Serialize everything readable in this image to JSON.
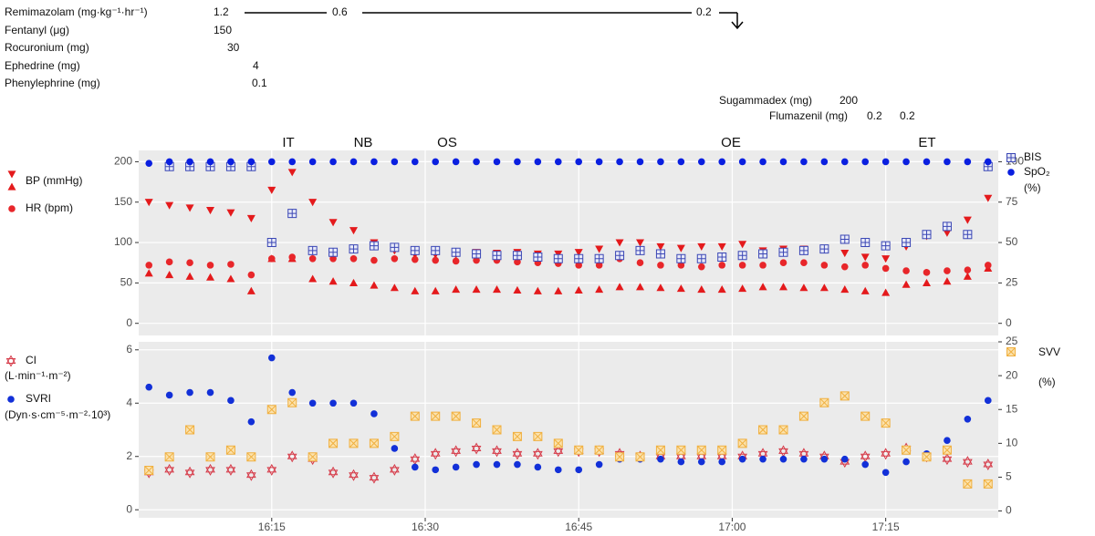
{
  "drugs": [
    {
      "label": "Remimazolam (mg·kg⁻¹·hr⁻¹)",
      "doses": [
        1.2,
        0.6,
        0.2
      ]
    },
    {
      "label": "Fentanyl (μg)",
      "doses": [
        150
      ]
    },
    {
      "label": "Rocuronium (mg)",
      "doses": [
        30
      ]
    },
    {
      "label": "Ephedrine (mg)",
      "doses": [
        4
      ]
    },
    {
      "label": "Phenylephrine (mg)",
      "doses": [
        0.1
      ]
    },
    {
      "label": "Sugammadex (mg)",
      "doses": [
        200
      ]
    },
    {
      "label": "Flumazenil (mg)",
      "doses": [
        0.2,
        0.2
      ]
    }
  ],
  "chart_data": [
    {
      "type": "scatter",
      "events": [
        "IT",
        "NB",
        "OS",
        "OE",
        "ET"
      ],
      "x": [
        "16:03",
        "16:05",
        "16:07",
        "16:09",
        "16:11",
        "16:13",
        "16:15",
        "16:17",
        "16:19",
        "16:21",
        "16:23",
        "16:25",
        "16:27",
        "16:29",
        "16:31",
        "16:33",
        "16:35",
        "16:37",
        "16:39",
        "16:41",
        "16:43",
        "16:45",
        "16:47",
        "16:49",
        "16:51",
        "16:53",
        "16:55",
        "16:57",
        "16:59",
        "17:01",
        "17:03",
        "17:05",
        "17:07",
        "17:09",
        "17:11",
        "17:13",
        "17:15",
        "17:17",
        "17:19",
        "17:21",
        "17:23",
        "17:25"
      ],
      "xlim": [
        "16:02",
        "17:26"
      ],
      "xticks": [
        "16:15",
        "16:30",
        "16:45",
        "17:00",
        "17:15"
      ],
      "ylim": [
        -15,
        214
      ],
      "yticks": [
        0,
        50,
        100,
        150,
        200
      ],
      "y2lim": [
        -7.5,
        107
      ],
      "y2ticks": [
        0,
        25,
        50,
        75,
        100
      ],
      "grid": true,
      "series": [
        {
          "name": "BP (mmHg)",
          "color": "#e41a1c",
          "marker": "triangle-down",
          "values": [
            150,
            146,
            143,
            140,
            137,
            130,
            165,
            187,
            150,
            125,
            115,
            100,
            90,
            85,
            85,
            85,
            88,
            87,
            88,
            86,
            86,
            88,
            92,
            100,
            100,
            95,
            93,
            95,
            95,
            98,
            90,
            92,
            92,
            92,
            87,
            82,
            80,
            95,
            108,
            112,
            128,
            155
          ]
        },
        {
          "color": "#e41a1c",
          "marker": "triangle-up",
          "values": [
            62,
            60,
            58,
            57,
            55,
            40,
            80,
            80,
            55,
            52,
            50,
            47,
            44,
            40,
            40,
            42,
            42,
            42,
            41,
            40,
            40,
            41,
            42,
            45,
            45,
            44,
            43,
            42,
            42,
            43,
            45,
            45,
            44,
            44,
            42,
            40,
            38,
            48,
            50,
            52,
            58,
            68
          ]
        },
        {
          "name": "HR (bpm)",
          "color": "#e8262a",
          "marker": "circle",
          "values": [
            72,
            76,
            75,
            72,
            73,
            60,
            80,
            82,
            80,
            80,
            80,
            78,
            80,
            79,
            78,
            77,
            78,
            78,
            76,
            75,
            74,
            72,
            72,
            80,
            75,
            72,
            72,
            70,
            72,
            72,
            72,
            75,
            75,
            72,
            70,
            72,
            68,
            65,
            63,
            65,
            66,
            72
          ]
        },
        {
          "name": "BIS",
          "color": "#3b47b5",
          "marker": "square-plus",
          "axis": "y2",
          "values": [
            null,
            97,
            97,
            97,
            97,
            97,
            50,
            68,
            45,
            44,
            46,
            48,
            47,
            45,
            45,
            44,
            43,
            42,
            42,
            41,
            40,
            40,
            40,
            42,
            45,
            43,
            40,
            40,
            41,
            42,
            43,
            44,
            45,
            46,
            52,
            50,
            48,
            50,
            55,
            60,
            55,
            97
          ]
        },
        {
          "name": "SpO₂",
          "unit": "(%)",
          "color": "#0a1fe0",
          "marker": "circle",
          "axis": "y2",
          "values": [
            99,
            100,
            100,
            100,
            100,
            100,
            100,
            100,
            100,
            100,
            100,
            100,
            100,
            100,
            100,
            100,
            100,
            100,
            100,
            100,
            100,
            100,
            100,
            100,
            100,
            100,
            100,
            100,
            100,
            100,
            100,
            100,
            100,
            100,
            100,
            100,
            100,
            100,
            100,
            100,
            100,
            100
          ]
        }
      ]
    },
    {
      "type": "scatter",
      "x": [
        "16:03",
        "16:05",
        "16:07",
        "16:09",
        "16:11",
        "16:13",
        "16:15",
        "16:17",
        "16:19",
        "16:21",
        "16:23",
        "16:25",
        "16:27",
        "16:29",
        "16:31",
        "16:33",
        "16:35",
        "16:37",
        "16:39",
        "16:41",
        "16:43",
        "16:45",
        "16:47",
        "16:49",
        "16:51",
        "16:53",
        "16:55",
        "16:57",
        "16:59",
        "17:01",
        "17:03",
        "17:05",
        "17:07",
        "17:09",
        "17:11",
        "17:13",
        "17:15",
        "17:17",
        "17:19",
        "17:21",
        "17:23",
        "17:25"
      ],
      "xlim": [
        "16:02",
        "17:26"
      ],
      "xticks": [
        "16:15",
        "16:30",
        "16:45",
        "17:00",
        "17:15"
      ],
      "ylim": [
        -0.3,
        6.3
      ],
      "yticks": [
        0,
        2,
        4,
        6
      ],
      "y2lim": [
        -1,
        25
      ],
      "y2ticks": [
        0,
        5,
        10,
        15,
        20,
        25
      ],
      "grid": true,
      "series": [
        {
          "name": "CI",
          "unit": "(L·min⁻¹·m⁻²)",
          "color": "#d63a48",
          "marker": "hexagram",
          "values": [
            1.4,
            1.5,
            1.4,
            1.5,
            1.5,
            1.3,
            1.5,
            2.0,
            1.9,
            1.4,
            1.3,
            1.2,
            1.5,
            1.9,
            2.1,
            2.2,
            2.3,
            2.2,
            2.1,
            2.1,
            2.2,
            2.2,
            2.2,
            2.1,
            2.0,
            2.0,
            2.0,
            2.0,
            2.0,
            2.0,
            2.1,
            2.2,
            2.1,
            2.0,
            1.8,
            2.0,
            2.1,
            2.3,
            2.0,
            1.9,
            1.8,
            1.7
          ]
        },
        {
          "name": "SVRI",
          "unit": "(Dyn·s·cm⁻⁵·m⁻²·10³)",
          "color": "#1230d8",
          "marker": "circle",
          "values": [
            4.6,
            4.3,
            4.4,
            4.4,
            4.1,
            3.3,
            5.7,
            4.4,
            4.0,
            4.0,
            4.0,
            3.6,
            2.3,
            1.6,
            1.5,
            1.6,
            1.7,
            1.7,
            1.7,
            1.6,
            1.5,
            1.5,
            1.7,
            1.9,
            1.9,
            1.9,
            1.8,
            1.8,
            1.8,
            1.9,
            1.9,
            1.9,
            1.9,
            1.9,
            1.9,
            1.7,
            1.4,
            1.8,
            2.1,
            2.6,
            3.4,
            4.1
          ]
        },
        {
          "name": "SVV",
          "unit": "(%)",
          "color": "#f0b040",
          "marker": "square-x",
          "axis": "y2",
          "values": [
            6,
            8,
            12,
            8,
            9,
            8,
            15,
            16,
            8,
            10,
            10,
            10,
            11,
            14,
            14,
            14,
            13,
            12,
            11,
            11,
            10,
            9,
            9,
            8,
            8,
            9,
            9,
            9,
            9,
            10,
            12,
            12,
            14,
            16,
            17,
            14,
            13,
            9,
            8,
            9,
            4,
            4
          ]
        }
      ]
    }
  ]
}
